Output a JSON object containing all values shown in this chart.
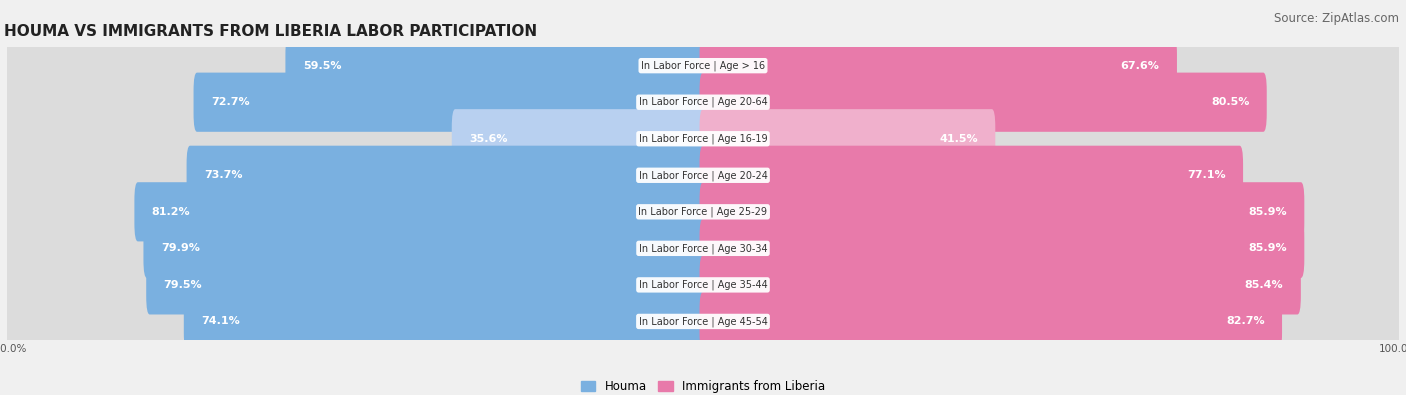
{
  "title": "HOUMA VS IMMIGRANTS FROM LIBERIA LABOR PARTICIPATION",
  "source": "Source: ZipAtlas.com",
  "categories": [
    "In Labor Force | Age > 16",
    "In Labor Force | Age 20-64",
    "In Labor Force | Age 16-19",
    "In Labor Force | Age 20-24",
    "In Labor Force | Age 25-29",
    "In Labor Force | Age 30-34",
    "In Labor Force | Age 35-44",
    "In Labor Force | Age 45-54"
  ],
  "houma_values": [
    59.5,
    72.7,
    35.6,
    73.7,
    81.2,
    79.9,
    79.5,
    74.1
  ],
  "liberia_values": [
    67.6,
    80.5,
    41.5,
    77.1,
    85.9,
    85.9,
    85.4,
    82.7
  ],
  "houma_color": "#7ab0e0",
  "houma_color_light": "#b8d0f0",
  "liberia_color": "#e87aaa",
  "liberia_color_light": "#f0b0cc",
  "label_color_white": "#ffffff",
  "label_color_dark": "#555555",
  "bg_color": "#f0f0f0",
  "row_bg_light": "#e8e8e8",
  "row_bg_white": "#f8f8f8",
  "max_value": 100.0,
  "title_fontsize": 11,
  "source_fontsize": 8.5,
  "bar_label_fontsize": 8,
  "category_fontsize": 7,
  "axis_label_fontsize": 7.5,
  "legend_houma": "Houma",
  "legend_liberia": "Immigrants from Liberia"
}
